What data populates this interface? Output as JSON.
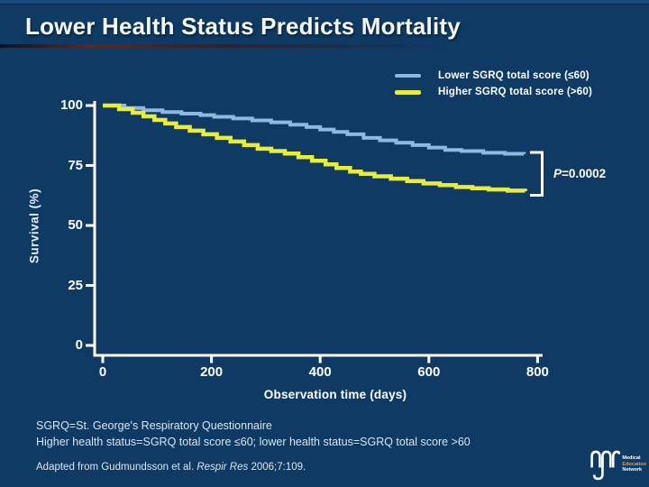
{
  "slide": {
    "title": "Lower Health Status Predicts Mortality"
  },
  "chart_data": {
    "type": "line",
    "subtype": "kaplan-meier-step",
    "title": "Lower Health Status Predicts Mortality",
    "xlabel": "Observation time (days)",
    "ylabel": "Survival (%)",
    "x_ticks": [
      0,
      200,
      400,
      600,
      800
    ],
    "y_ticks": [
      100,
      75,
      50,
      25,
      0
    ],
    "xlim": [
      0,
      970
    ],
    "ylim": [
      0,
      100
    ],
    "grid": false,
    "legend_position": "top-right",
    "annotation": {
      "p_italic": "P",
      "p_rest": "=0.0002"
    },
    "series": [
      {
        "name": "Lower SGRQ total score (≤60)",
        "color": "#8fb9df",
        "points": [
          [
            0,
            100
          ],
          [
            40,
            99
          ],
          [
            75,
            98
          ],
          [
            110,
            97.3
          ],
          [
            145,
            96.6
          ],
          [
            180,
            96
          ],
          [
            205,
            95.3
          ],
          [
            240,
            94.6
          ],
          [
            275,
            93.8
          ],
          [
            310,
            93
          ],
          [
            345,
            92
          ],
          [
            375,
            91
          ],
          [
            400,
            90
          ],
          [
            425,
            89
          ],
          [
            450,
            88
          ],
          [
            480,
            86.5
          ],
          [
            510,
            85.5
          ],
          [
            540,
            84.5
          ],
          [
            570,
            83.5
          ],
          [
            600,
            82.5
          ],
          [
            630,
            81.5
          ],
          [
            660,
            81
          ],
          [
            700,
            80.3
          ],
          [
            740,
            79.9
          ],
          [
            775,
            79.8
          ]
        ]
      },
      {
        "name": "Higher SGRQ total score (>60)",
        "color": "#e9ec38",
        "points": [
          [
            0,
            100
          ],
          [
            30,
            98.5
          ],
          [
            55,
            97
          ],
          [
            75,
            95.5
          ],
          [
            95,
            94
          ],
          [
            115,
            92.5
          ],
          [
            135,
            91
          ],
          [
            160,
            89.5
          ],
          [
            185,
            88
          ],
          [
            210,
            86.5
          ],
          [
            235,
            85
          ],
          [
            260,
            83.5
          ],
          [
            285,
            82
          ],
          [
            310,
            81
          ],
          [
            335,
            80
          ],
          [
            360,
            78.5
          ],
          [
            385,
            77
          ],
          [
            410,
            75.5
          ],
          [
            430,
            74
          ],
          [
            455,
            72.5
          ],
          [
            475,
            71.5
          ],
          [
            500,
            70.5
          ],
          [
            530,
            69.5
          ],
          [
            560,
            68.5
          ],
          [
            590,
            67.5
          ],
          [
            620,
            66.8
          ],
          [
            650,
            66
          ],
          [
            680,
            65.5
          ],
          [
            710,
            65
          ],
          [
            745,
            64.5
          ],
          [
            777,
            64.3
          ]
        ]
      }
    ]
  },
  "footnotes": {
    "line1": "SGRQ=St. George's Respiratory Questionnaire",
    "line2": "Higher health status=SGRQ total score ≤60; lower health status=SGRQ total score >60",
    "citation_prefix": "Adapted from Gudmundsson et al. ",
    "citation_italic": "Respir Res",
    "citation_suffix": " 2006;7:109."
  },
  "logo": {
    "word1": "Medical",
    "word2": "Education",
    "word3": "Network"
  },
  "colors": {
    "background": "#0e3a64",
    "axis": "#ffffff",
    "series_lower": "#8fb9df",
    "series_higher": "#e9ec38",
    "logo_accent": "#e5a23c"
  }
}
